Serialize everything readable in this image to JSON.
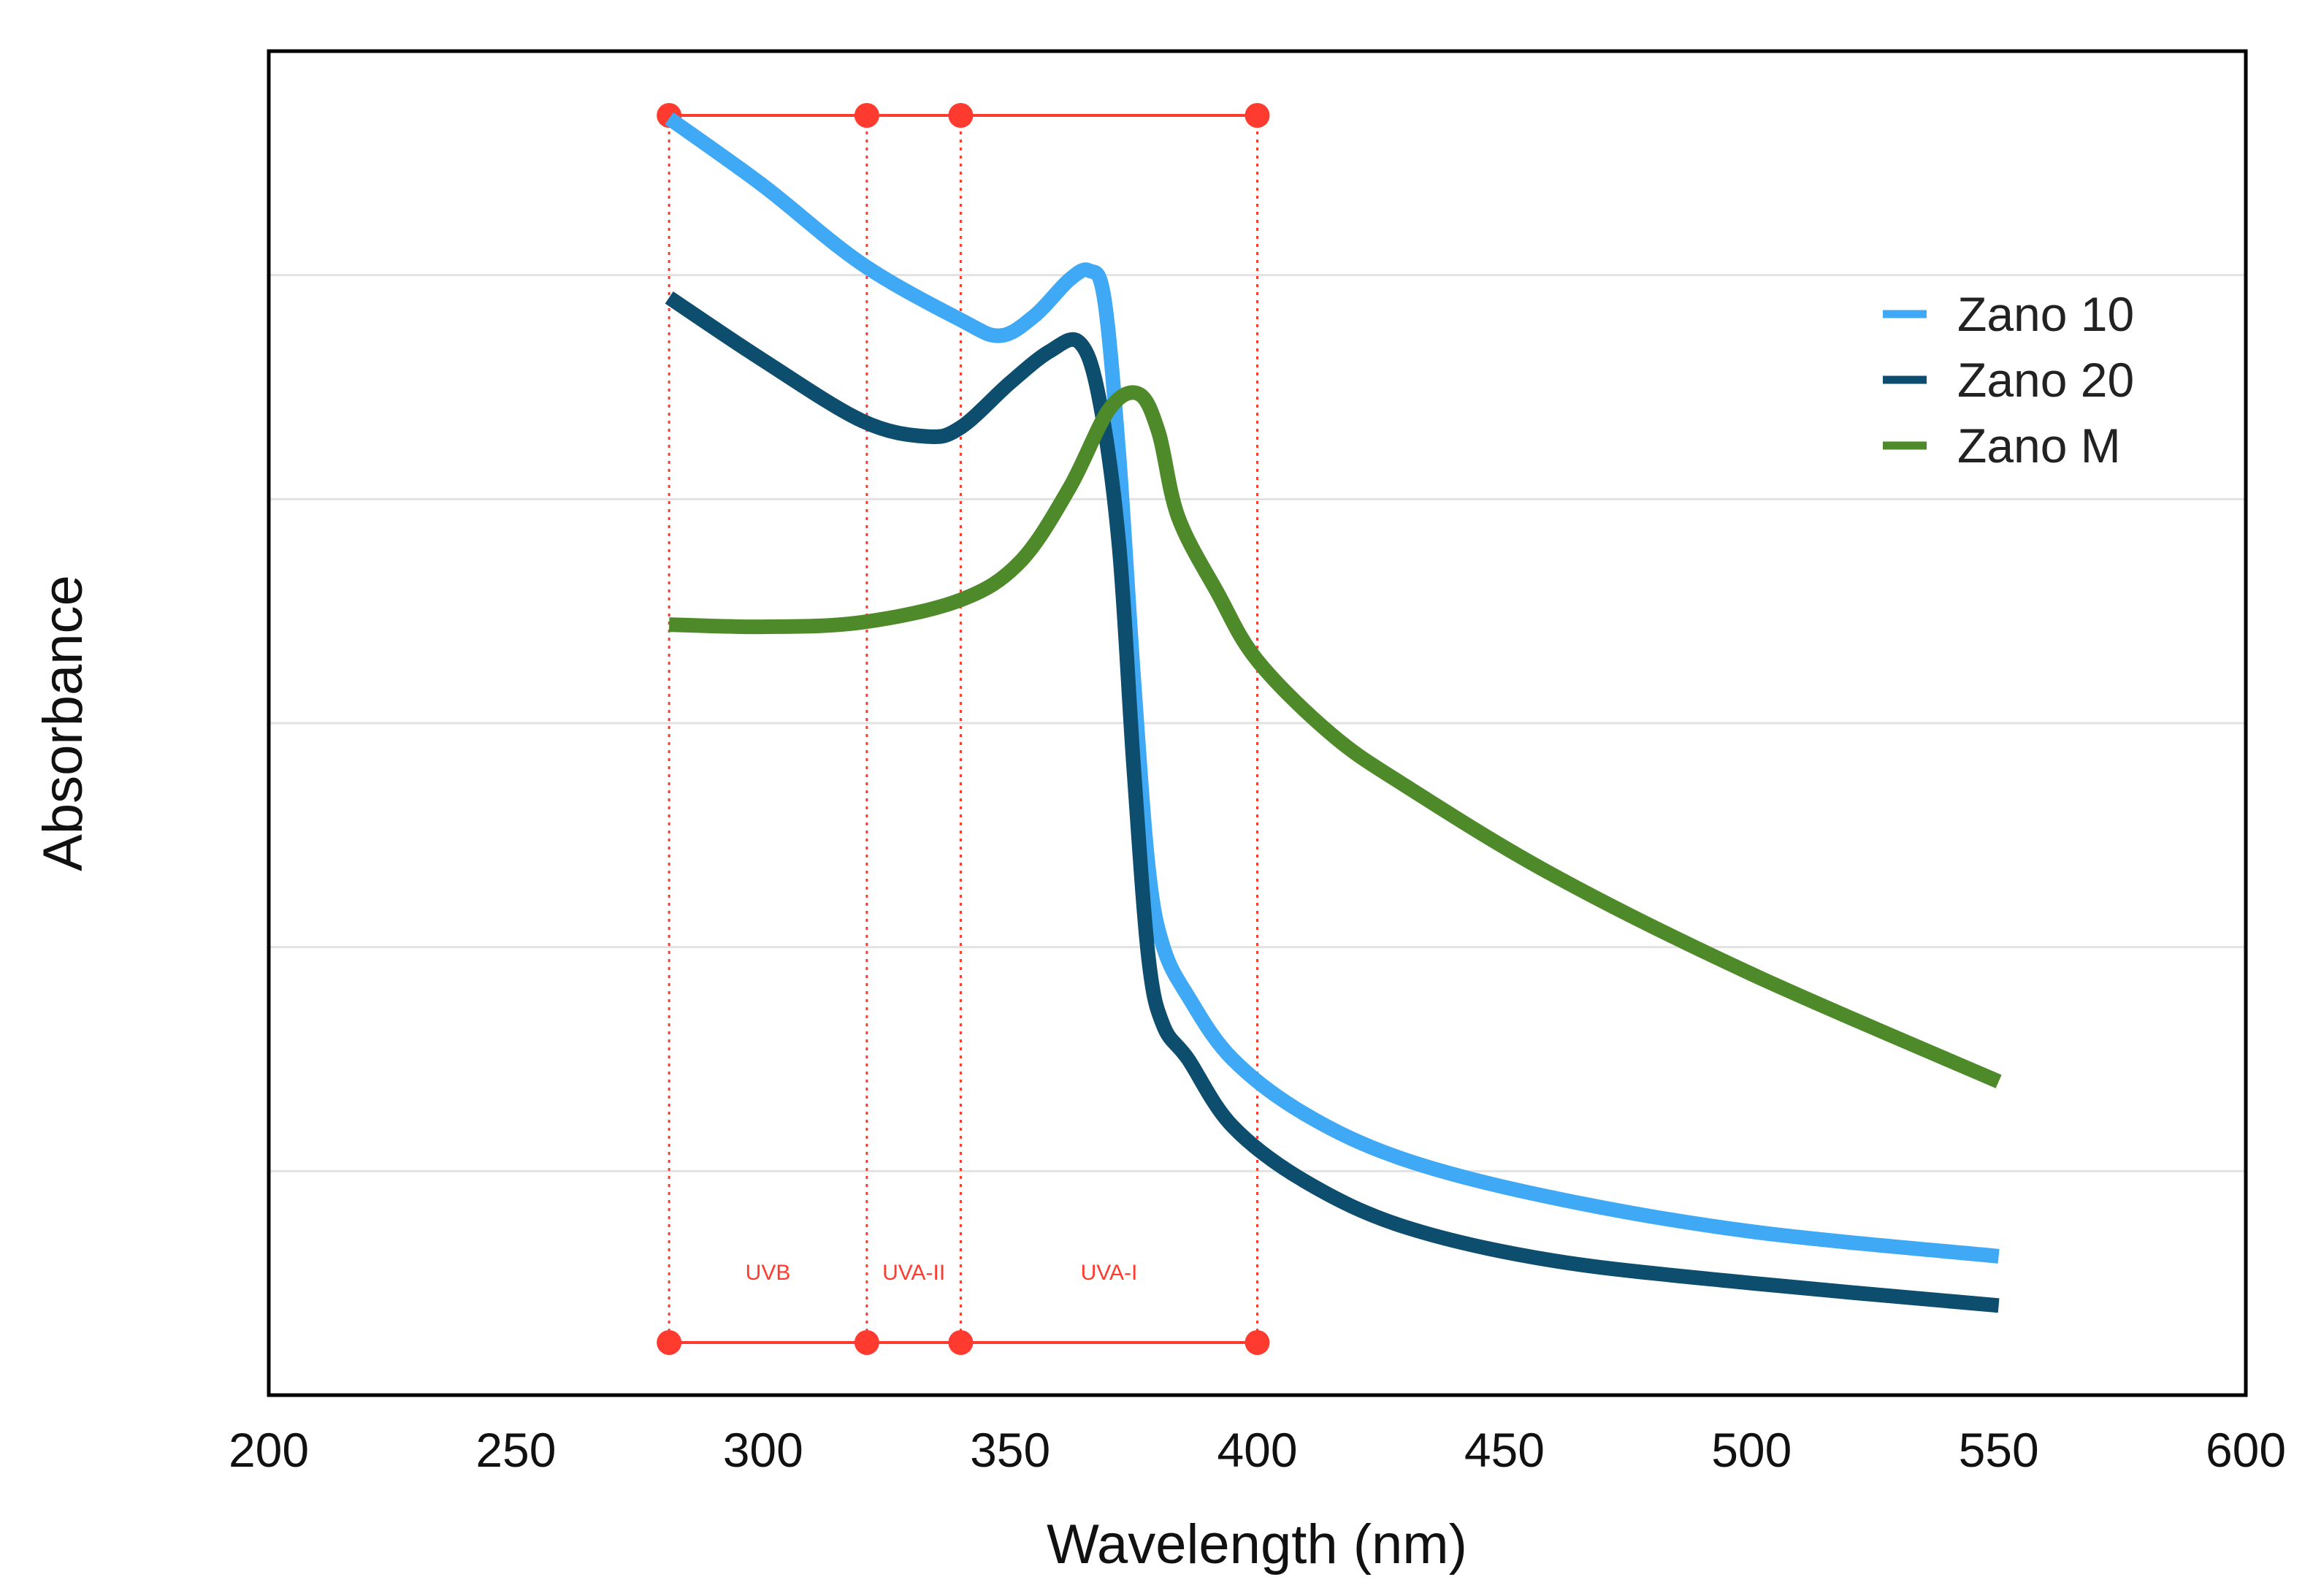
{
  "chart_data": {
    "type": "line",
    "title": "",
    "xlabel": "Wavelength (nm)",
    "ylabel": "Absorbance",
    "xlim": [
      200,
      600
    ],
    "ylim": [
      0,
      6
    ],
    "xticks": [
      "200",
      "250",
      "300",
      "350",
      "400",
      "450",
      "500",
      "550",
      "600"
    ],
    "yticks": [],
    "grid": true,
    "legend_position": "top-right",
    "series": [
      {
        "name": "Zano 10",
        "color": "#3FA9F5",
        "x": [
          281,
          300,
          320,
          340,
          348,
          355,
          362,
          366,
          369,
          372,
          375,
          378,
          381,
          386,
          395,
          410,
          430,
          460,
          500,
          550
        ],
        "y": [
          5.7,
          5.4,
          5.05,
          4.8,
          4.73,
          4.82,
          4.98,
          5.02,
          4.9,
          4.2,
          3.2,
          2.35,
          2.0,
          1.78,
          1.5,
          1.25,
          1.05,
          0.88,
          0.73,
          0.62
        ]
      },
      {
        "name": "Zano 20",
        "color": "#0D4D6E",
        "x": [
          281,
          300,
          320,
          333,
          340,
          350,
          358,
          364,
          368,
          372,
          375,
          378,
          381,
          386,
          395,
          410,
          430,
          460,
          500,
          550
        ],
        "y": [
          4.9,
          4.62,
          4.35,
          4.28,
          4.32,
          4.52,
          4.66,
          4.7,
          4.45,
          3.8,
          2.8,
          1.95,
          1.65,
          1.5,
          1.2,
          0.95,
          0.75,
          0.6,
          0.5,
          0.4
        ]
      },
      {
        "name": "Zano M",
        "color": "#4E8A2A",
        "x": [
          281,
          300,
          320,
          340,
          352,
          362,
          370,
          376,
          380,
          384,
          392,
          400,
          415,
          430,
          460,
          500,
          550
        ],
        "y": [
          3.44,
          3.43,
          3.45,
          3.55,
          3.72,
          4.05,
          4.4,
          4.47,
          4.3,
          3.92,
          3.58,
          3.28,
          2.95,
          2.72,
          2.32,
          1.88,
          1.4
        ]
      }
    ],
    "bands": [
      {
        "label": "UVB",
        "from": 281,
        "to": 321
      },
      {
        "label": "UVA-II",
        "from": 321,
        "to": 340
      },
      {
        "label": "UVA-I",
        "from": 340,
        "to": 400
      }
    ],
    "band_color": "#FF3B30"
  }
}
